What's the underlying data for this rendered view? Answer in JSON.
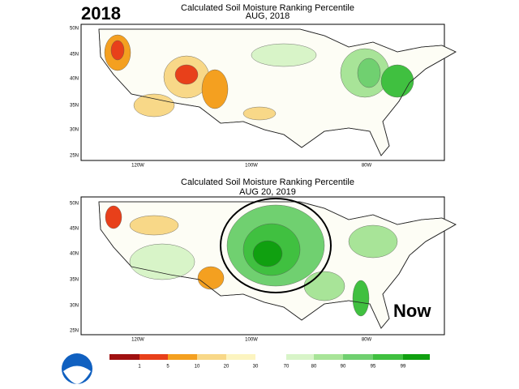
{
  "panels": [
    {
      "badge": "2018",
      "title": "Calculated Soil Moisture Ranking Percentile",
      "date": "AUG, 2018"
    },
    {
      "badge": "Now",
      "title": "Calculated Soil Moisture Ranking Percentile",
      "date": "AUG 20, 2019"
    }
  ],
  "lat_labels": [
    "50N",
    "45N",
    "40N",
    "35N",
    "30N",
    "25N"
  ],
  "lon_labels": [
    "120W",
    "100W",
    "80W"
  ],
  "legend": {
    "labels": [
      "1",
      "5",
      "10",
      "20",
      "30",
      "70",
      "80",
      "90",
      "95",
      "99"
    ],
    "colors": [
      "#a01010",
      "#e8401a",
      "#f4a020",
      "#f8d888",
      "#fcf4c0",
      "#ffffff",
      "#d8f4c8",
      "#a8e498",
      "#70d070",
      "#40c040",
      "#10a010"
    ]
  }
}
